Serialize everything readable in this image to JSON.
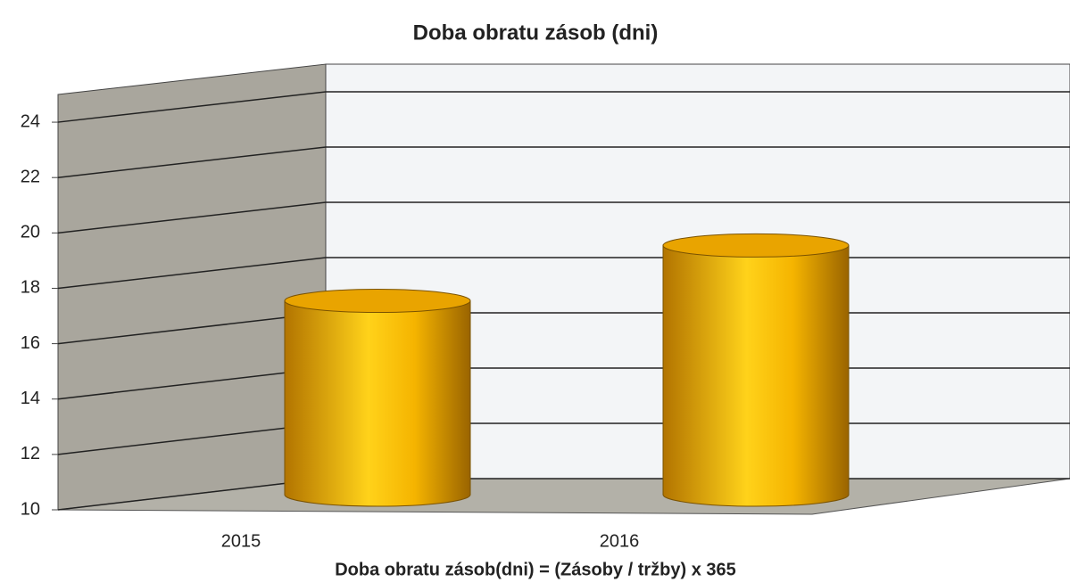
{
  "chart_data": {
    "type": "bar",
    "title": "Doba obratu zásob (dni)",
    "footnote": "Doba obratu zásob(dni) = (Zásoby / tržby) x 365",
    "categories": [
      "2015",
      "2016"
    ],
    "values": [
      17,
      19
    ],
    "color": "#f5b800",
    "ylim": [
      10,
      25
    ],
    "yticks": [
      10,
      12,
      14,
      16,
      18,
      20,
      22,
      24
    ],
    "grid": true
  }
}
